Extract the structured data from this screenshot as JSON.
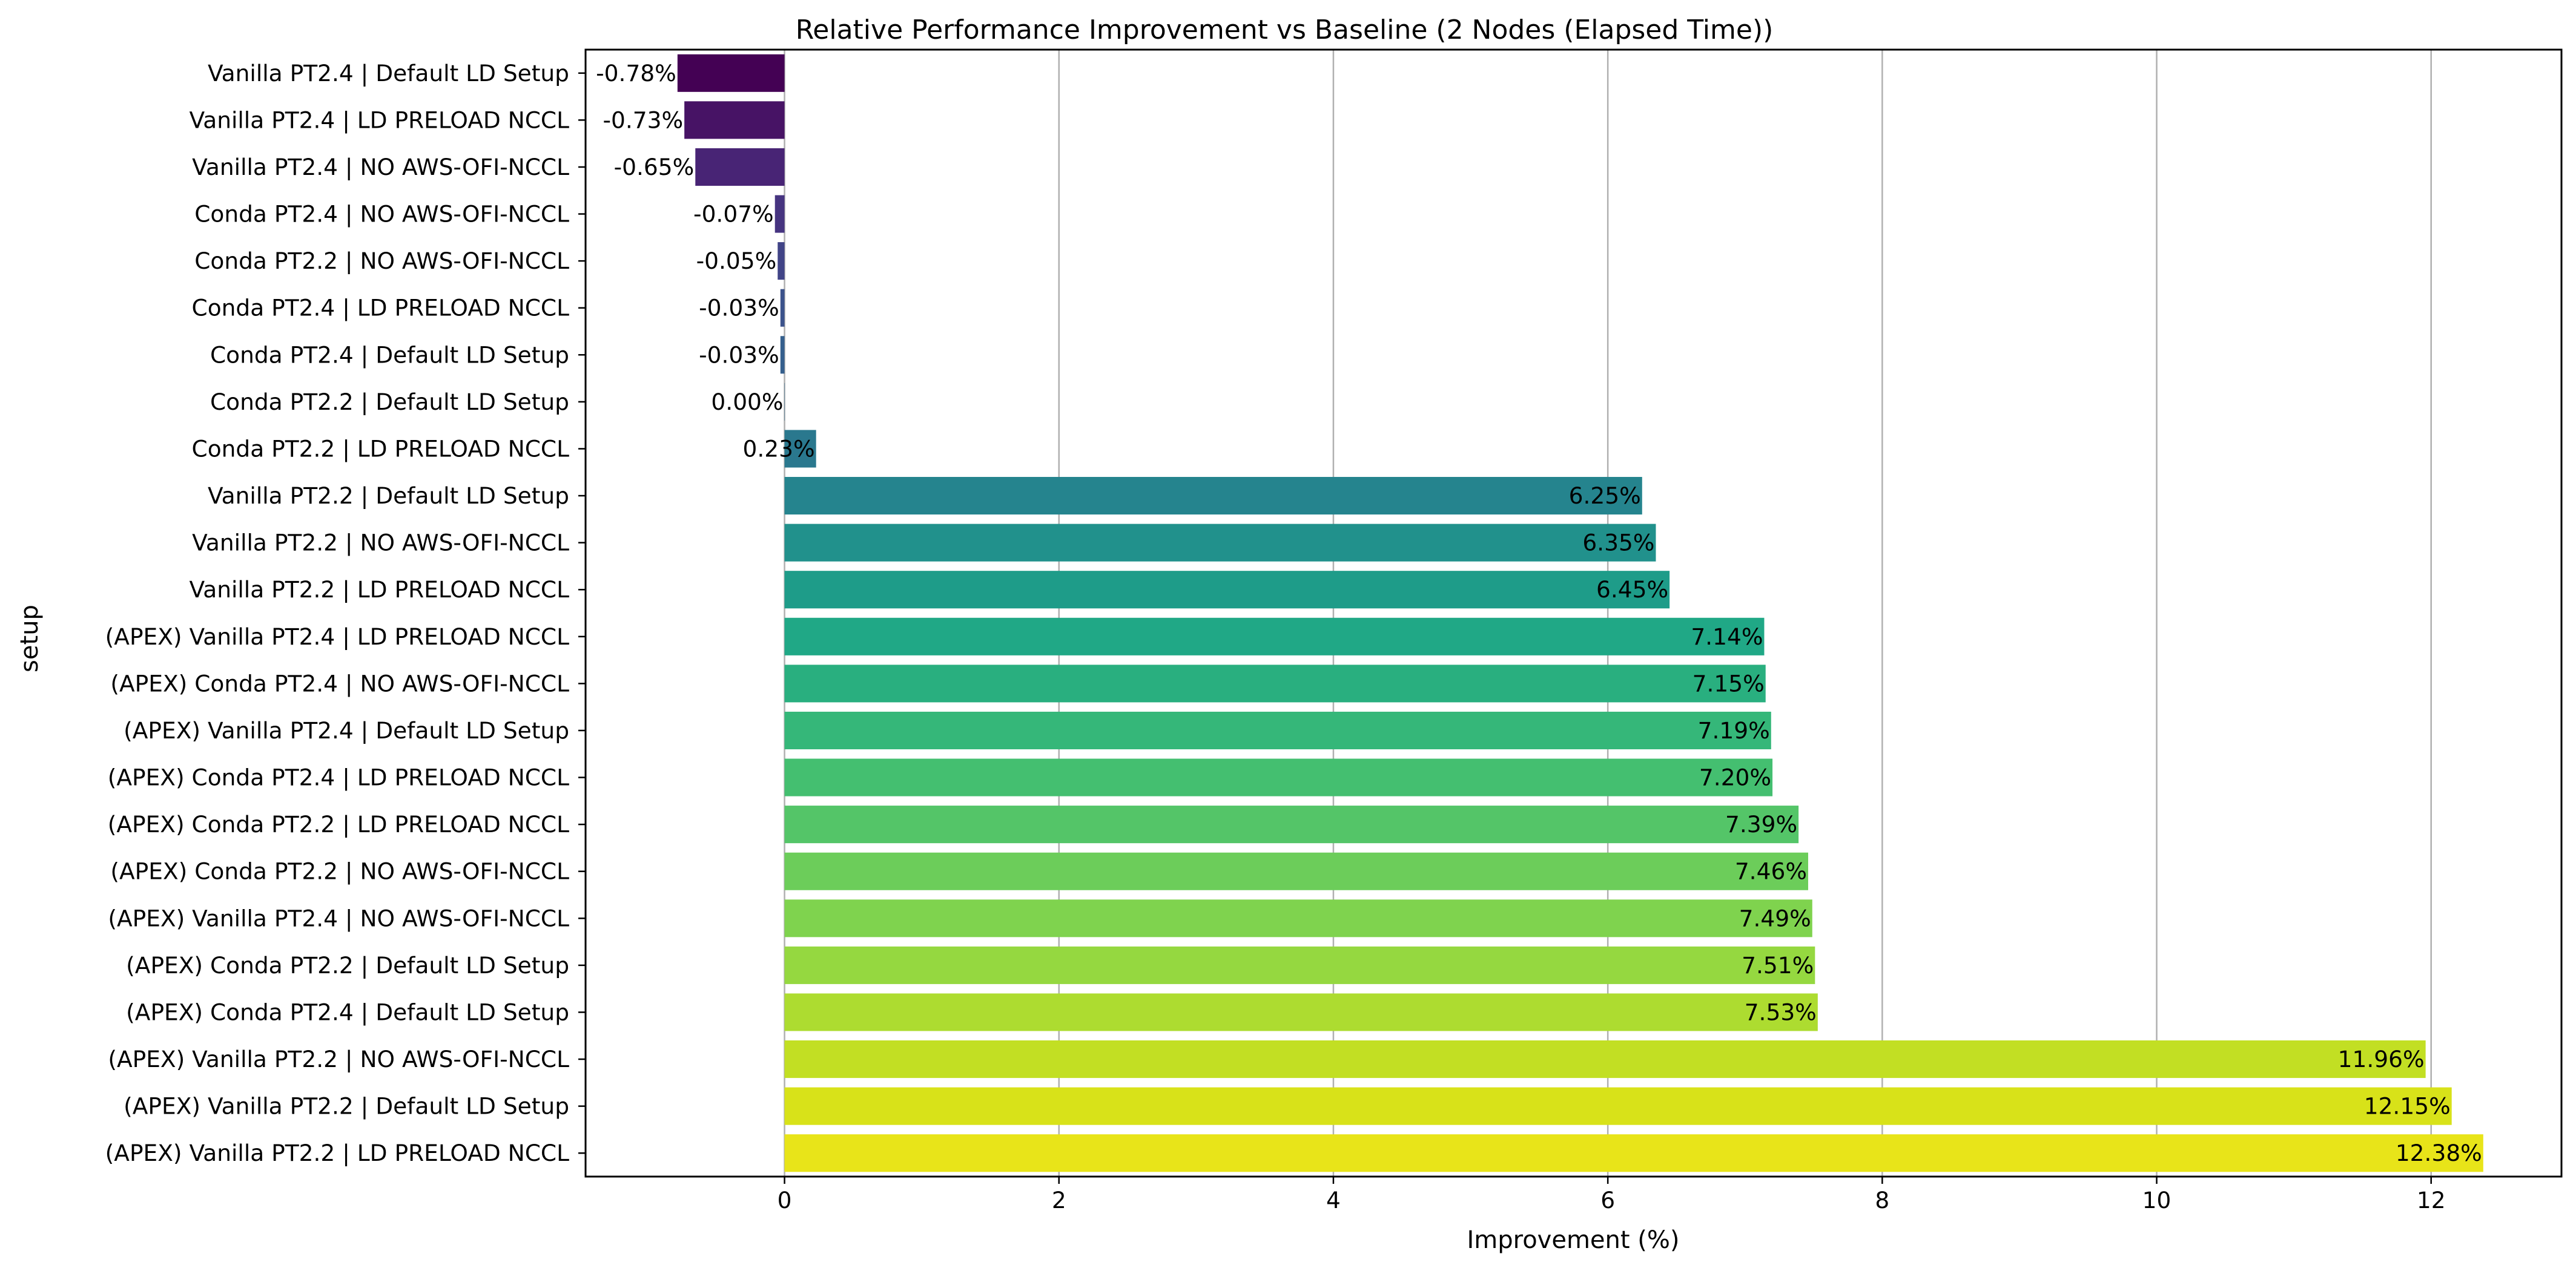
{
  "chart_data": {
    "type": "bar",
    "orientation": "horizontal",
    "title": "Relative Performance Improvement vs Baseline (2 Nodes (Elapsed Time))",
    "xlabel": "Improvement (%)",
    "ylabel": "setup",
    "xlim": [
      -1.45,
      12.95
    ],
    "xticks": [
      0,
      2,
      4,
      6,
      8,
      10,
      12
    ],
    "xtick_labels": [
      "0",
      "2",
      "4",
      "6",
      "8",
      "10",
      "12"
    ],
    "grid": "vertical",
    "colormap": "viridis",
    "categories": [
      "Vanilla PT2.4 | Default LD Setup",
      "Vanilla PT2.4 | LD PRELOAD NCCL",
      "Vanilla PT2.4 | NO AWS-OFI-NCCL",
      "Conda PT2.4 | NO AWS-OFI-NCCL",
      "Conda PT2.2 | NO AWS-OFI-NCCL",
      "Conda PT2.4 | LD PRELOAD NCCL",
      "Conda PT2.4 | Default LD Setup",
      "Conda PT2.2 | Default LD Setup",
      "Conda PT2.2 | LD PRELOAD NCCL",
      "Vanilla PT2.2 | Default LD Setup",
      "Vanilla PT2.2 | NO AWS-OFI-NCCL",
      "Vanilla PT2.2 | LD PRELOAD NCCL",
      "(APEX) Vanilla PT2.4 | LD PRELOAD NCCL",
      "(APEX) Conda PT2.4 | NO AWS-OFI-NCCL",
      "(APEX) Vanilla PT2.4 | Default LD Setup",
      "(APEX) Conda PT2.4 | LD PRELOAD NCCL",
      "(APEX) Conda PT2.2 | LD PRELOAD NCCL",
      "(APEX) Conda PT2.2 | NO AWS-OFI-NCCL",
      "(APEX) Vanilla PT2.4 | NO AWS-OFI-NCCL",
      "(APEX) Conda PT2.2 | Default LD Setup",
      "(APEX) Conda PT2.4 | Default LD Setup",
      "(APEX) Vanilla PT2.2 | NO AWS-OFI-NCCL",
      "(APEX) Vanilla PT2.2 | Default LD Setup",
      "(APEX) Vanilla PT2.2 | LD PRELOAD NCCL"
    ],
    "values": [
      -0.78,
      -0.73,
      -0.65,
      -0.07,
      -0.05,
      -0.03,
      -0.03,
      0.0,
      0.23,
      6.25,
      6.35,
      6.45,
      7.14,
      7.15,
      7.19,
      7.2,
      7.39,
      7.46,
      7.49,
      7.51,
      7.53,
      11.96,
      12.15,
      12.38
    ],
    "data_labels": [
      "-0.78%",
      "-0.73%",
      "-0.65%",
      "-0.07%",
      "-0.05%",
      "-0.03%",
      "-0.03%",
      "0.00%",
      "0.23%",
      "6.25%",
      "6.35%",
      "6.45%",
      "7.14%",
      "7.15%",
      "7.19%",
      "7.20%",
      "7.39%",
      "7.46%",
      "7.49%",
      "7.51%",
      "7.53%",
      "11.96%",
      "12.15%",
      "12.38%"
    ],
    "colors": [
      "#440154",
      "#471365",
      "#482475",
      "#463480",
      "#414487",
      "#3b528b",
      "#355f8d",
      "#2f6c8e",
      "#2a788e",
      "#25848e",
      "#21918c",
      "#1e9c89",
      "#20a886",
      "#29af7f",
      "#35b779",
      "#44bf70",
      "#54c568",
      "#6ccd5a",
      "#7fd34e",
      "#95d840",
      "#addc30",
      "#c2df23",
      "#d8e219",
      "#e8e419"
    ]
  }
}
